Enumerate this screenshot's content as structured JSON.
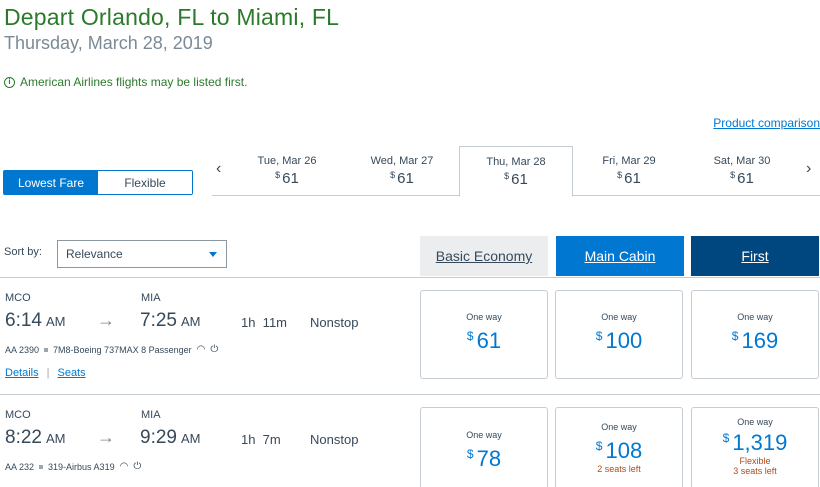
{
  "header": {
    "title": "Depart Orlando, FL to Miami, FL",
    "date": "Thursday, March 28, 2019",
    "notice": "American Airlines flights may be listed first."
  },
  "product_comparison": "Product comparison",
  "fare_toggle": {
    "lowest": "Lowest Fare",
    "flexible": "Flexible"
  },
  "dates": [
    {
      "label": "Tue, Mar 26",
      "currency": "$",
      "price": "61"
    },
    {
      "label": "Wed, Mar 27",
      "currency": "$",
      "price": "61"
    },
    {
      "label": "Thu, Mar 28",
      "currency": "$",
      "price": "61"
    },
    {
      "label": "Fri, Mar 29",
      "currency": "$",
      "price": "61"
    },
    {
      "label": "Sat, Mar 30",
      "currency": "$",
      "price": "61"
    }
  ],
  "sort": {
    "label": "Sort by:",
    "value": "Relevance"
  },
  "cabins": {
    "basic": "Basic Economy",
    "main": "Main Cabin",
    "first": "First"
  },
  "flights": [
    {
      "from": "MCO",
      "to": "MIA",
      "depart": "6:14",
      "depart_ampm": "AM",
      "arrive": "7:25",
      "arrive_ampm": "AM",
      "duration": "1h  11m",
      "stops": "Nonstop",
      "flight_no": "AA 2390",
      "aircraft": "7M8-Boeing 737MAX 8 Passenger",
      "details": "Details",
      "seats": "Seats",
      "fares": [
        {
          "label": "One way",
          "currency": "$",
          "price": "61",
          "note": "",
          "note2": ""
        },
        {
          "label": "One way",
          "currency": "$",
          "price": "100",
          "note": "",
          "note2": ""
        },
        {
          "label": "One way",
          "currency": "$",
          "price": "169",
          "note": "",
          "note2": ""
        }
      ]
    },
    {
      "from": "MCO",
      "to": "MIA",
      "depart": "8:22",
      "depart_ampm": "AM",
      "arrive": "9:29",
      "arrive_ampm": "AM",
      "duration": "1h  7m",
      "stops": "Nonstop",
      "flight_no": "AA 232",
      "aircraft": "319-Airbus A319",
      "fares": [
        {
          "label": "One way",
          "currency": "$",
          "price": "78",
          "note": "",
          "note2": ""
        },
        {
          "label": "One way",
          "currency": "$",
          "price": "108",
          "note": "2 seats left",
          "note2": ""
        },
        {
          "label": "One way",
          "currency": "$",
          "price": "1,319",
          "note": "Flexible",
          "note2": "3 seats left"
        }
      ]
    }
  ],
  "colors": {
    "brand_blue": "#0078d2",
    "dark_blue": "#00467f",
    "green": "#2b7a2b",
    "warning": "#b04a1b"
  },
  "icons": {
    "wifi": "wifi-icon",
    "power": "power-icon",
    "info": "info-icon"
  }
}
